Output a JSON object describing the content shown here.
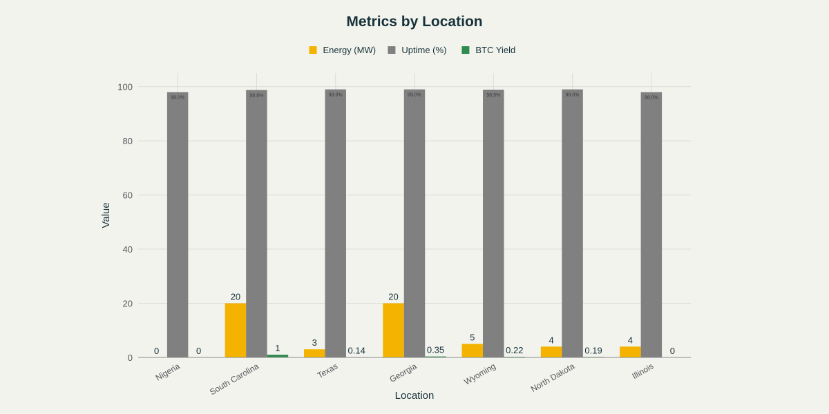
{
  "chart_data": {
    "type": "bar",
    "title": "Metrics by Location",
    "xlabel": "Location",
    "ylabel": "Value",
    "ylim": [
      0,
      105
    ],
    "yticks": [
      0,
      20,
      40,
      60,
      80,
      100
    ],
    "grid": true,
    "legend_position": "top-center",
    "categories": [
      "Nigeria",
      "South Carolina",
      "Texas",
      "Georgia",
      "Wyoming",
      "North Dakota",
      "Illinois"
    ],
    "series": [
      {
        "name": "Energy (MW)",
        "color": "#f5b301",
        "values": [
          0,
          20,
          3,
          20,
          5,
          4,
          4
        ],
        "labels": [
          "0",
          "20",
          "3",
          "20",
          "5",
          "4",
          "4"
        ]
      },
      {
        "name": "Uptime (%)",
        "color": "#808080",
        "values": [
          98.0,
          98.8,
          99.0,
          99.0,
          98.9,
          99.0,
          98.0
        ],
        "labels": [
          "98.0%",
          "98.8%",
          "99.0%",
          "99.0%",
          "98.9%",
          "99.0%",
          "98.0%"
        ]
      },
      {
        "name": "BTC Yield",
        "color": "#2e8b4f",
        "values": [
          0,
          1,
          0.14,
          0.35,
          0.22,
          0.19,
          0
        ],
        "labels": [
          "0",
          "1",
          "0.14",
          "0.35",
          "0.22",
          "0.19",
          "0"
        ]
      }
    ]
  }
}
